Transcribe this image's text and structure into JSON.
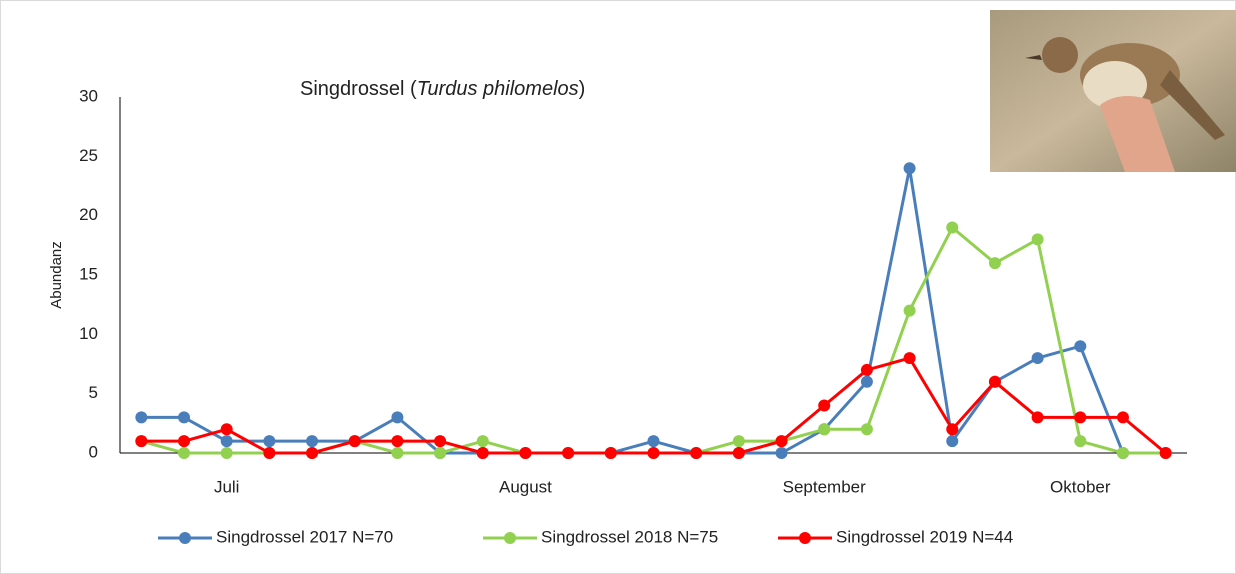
{
  "chart_data": {
    "type": "line",
    "title": [
      "Singdrossel (",
      "Turdus philomelos",
      ")"
    ],
    "y_label": "Abundanz",
    "categories": [
      null,
      null,
      "Juli",
      null,
      null,
      null,
      null,
      null,
      null,
      "August",
      null,
      null,
      null,
      null,
      null,
      null,
      "September",
      null,
      null,
      null,
      null,
      null,
      "Oktober",
      null,
      null
    ],
    "series": [
      {
        "name": "Singdrossel 2017 N=70",
        "color": "#4a7ebb",
        "values": [
          3,
          3,
          1,
          1,
          1,
          1,
          3,
          0,
          0,
          0,
          0,
          0,
          1,
          0,
          0,
          0,
          2,
          6,
          24,
          1,
          6,
          8,
          9,
          0,
          0
        ]
      },
      {
        "name": "Singdrossel 2018 N=75",
        "color": "#92d050",
        "values": [
          1,
          0,
          0,
          0,
          0,
          1,
          0,
          0,
          1,
          0,
          0,
          0,
          0,
          0,
          1,
          1,
          2,
          2,
          12,
          19,
          16,
          18,
          1,
          0,
          0
        ]
      },
      {
        "name": "Singdrossel 2019 N=44",
        "color": "#ff0000",
        "values": [
          1,
          1,
          2,
          0,
          0,
          1,
          1,
          1,
          0,
          0,
          0,
          0,
          0,
          0,
          0,
          1,
          4,
          7,
          8,
          2,
          6,
          3,
          3,
          3,
          0
        ]
      }
    ],
    "ylim": [
      0,
      30
    ],
    "yticks": [
      0,
      5,
      10,
      15,
      20,
      25,
      30
    ],
    "grid": false,
    "legend": "bottom"
  }
}
